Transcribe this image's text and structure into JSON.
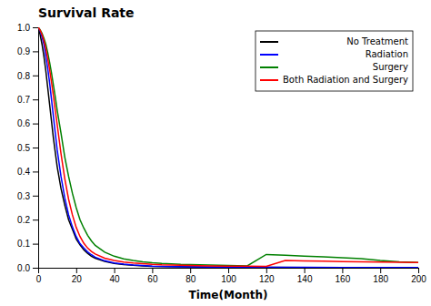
{
  "chart_data": {
    "type": "line",
    "title": "Survival Rate",
    "xlabel": "Time(Month)",
    "xlim": [
      0,
      200
    ],
    "ylim": [
      0.0,
      1.0
    ],
    "xticks": [
      0,
      20,
      40,
      60,
      80,
      100,
      120,
      140,
      160,
      180,
      200
    ],
    "yticks": [
      {
        "value": 0.0,
        "label": "0.0"
      },
      0.1,
      0.2,
      0.3,
      0.4,
      0.5,
      0.6,
      0.7,
      0.8,
      0.9,
      {
        "value": 1.0,
        "label": "1.0"
      }
    ],
    "grid": false,
    "legend": "upper-right",
    "series": [
      {
        "name": "No Treatment",
        "color": "black",
        "x": [
          0,
          1,
          2,
          3,
          4,
          5,
          6,
          7,
          8,
          9,
          10,
          12,
          14,
          16,
          18,
          20,
          22,
          24,
          26,
          28,
          30,
          35,
          40,
          45,
          50,
          55,
          60,
          70,
          80,
          90,
          100,
          120,
          140,
          160,
          180,
          200
        ],
        "values": [
          1.0,
          0.97,
          0.93,
          0.88,
          0.82,
          0.75,
          0.68,
          0.61,
          0.54,
          0.48,
          0.42,
          0.33,
          0.26,
          0.2,
          0.16,
          0.12,
          0.095,
          0.075,
          0.06,
          0.048,
          0.04,
          0.026,
          0.018,
          0.013,
          0.01,
          0.008,
          0.006,
          0.005,
          0.004,
          0.003,
          0.002,
          0.002,
          0.001,
          0.001,
          0.001,
          0.001
        ]
      },
      {
        "name": "Radiation",
        "color": "blue",
        "x": [
          0,
          1,
          2,
          3,
          4,
          5,
          6,
          7,
          8,
          9,
          10,
          12,
          14,
          16,
          18,
          20,
          22,
          24,
          26,
          28,
          30,
          35,
          40,
          45,
          50,
          55,
          60,
          65,
          70,
          80,
          90,
          100,
          120,
          140,
          160,
          180,
          200
        ],
        "values": [
          1.0,
          0.985,
          0.96,
          0.93,
          0.88,
          0.83,
          0.77,
          0.7,
          0.63,
          0.56,
          0.49,
          0.38,
          0.29,
          0.22,
          0.17,
          0.13,
          0.1,
          0.082,
          0.066,
          0.054,
          0.044,
          0.029,
          0.02,
          0.015,
          0.011,
          0.009,
          0.007,
          0.006,
          0.005,
          0.004,
          0.003,
          0.003,
          0.002,
          0.002,
          0.001,
          0.001,
          0.001
        ]
      },
      {
        "name": "Surgery",
        "color": "green",
        "x": [
          0,
          1,
          2,
          3,
          4,
          5,
          6,
          7,
          8,
          9,
          10,
          12,
          14,
          16,
          18,
          20,
          22,
          24,
          26,
          28,
          30,
          35,
          40,
          45,
          50,
          55,
          60,
          65,
          70,
          75,
          80,
          90,
          100,
          110,
          120,
          130,
          140,
          150,
          160,
          170,
          180,
          190,
          200
        ],
        "values": [
          1.0,
          0.99,
          0.975,
          0.955,
          0.93,
          0.895,
          0.855,
          0.81,
          0.76,
          0.71,
          0.655,
          0.56,
          0.46,
          0.38,
          0.31,
          0.25,
          0.2,
          0.165,
          0.135,
          0.112,
          0.093,
          0.065,
          0.048,
          0.037,
          0.03,
          0.025,
          0.021,
          0.018,
          0.016,
          0.014,
          0.013,
          0.011,
          0.009,
          0.008,
          0.055,
          0.052,
          0.048,
          0.045,
          0.042,
          0.038,
          0.03,
          0.025,
          0.022
        ]
      },
      {
        "name": "Both Radiation and Surgery",
        "color": "red",
        "x": [
          0,
          1,
          2,
          3,
          4,
          5,
          6,
          7,
          8,
          9,
          10,
          12,
          14,
          16,
          18,
          20,
          22,
          24,
          26,
          28,
          30,
          35,
          40,
          45,
          50,
          55,
          60,
          65,
          70,
          80,
          90,
          100,
          110,
          120,
          130,
          140,
          150,
          160,
          170,
          180,
          190,
          200
        ],
        "values": [
          1.0,
          0.988,
          0.97,
          0.945,
          0.912,
          0.872,
          0.825,
          0.772,
          0.715,
          0.655,
          0.595,
          0.475,
          0.37,
          0.285,
          0.22,
          0.168,
          0.13,
          0.102,
          0.082,
          0.068,
          0.057,
          0.04,
          0.03,
          0.024,
          0.02,
          0.017,
          0.014,
          0.012,
          0.011,
          0.009,
          0.008,
          0.007,
          0.007,
          0.006,
          0.03,
          0.028,
          0.027,
          0.026,
          0.025,
          0.024,
          0.023,
          0.022
        ]
      }
    ]
  }
}
